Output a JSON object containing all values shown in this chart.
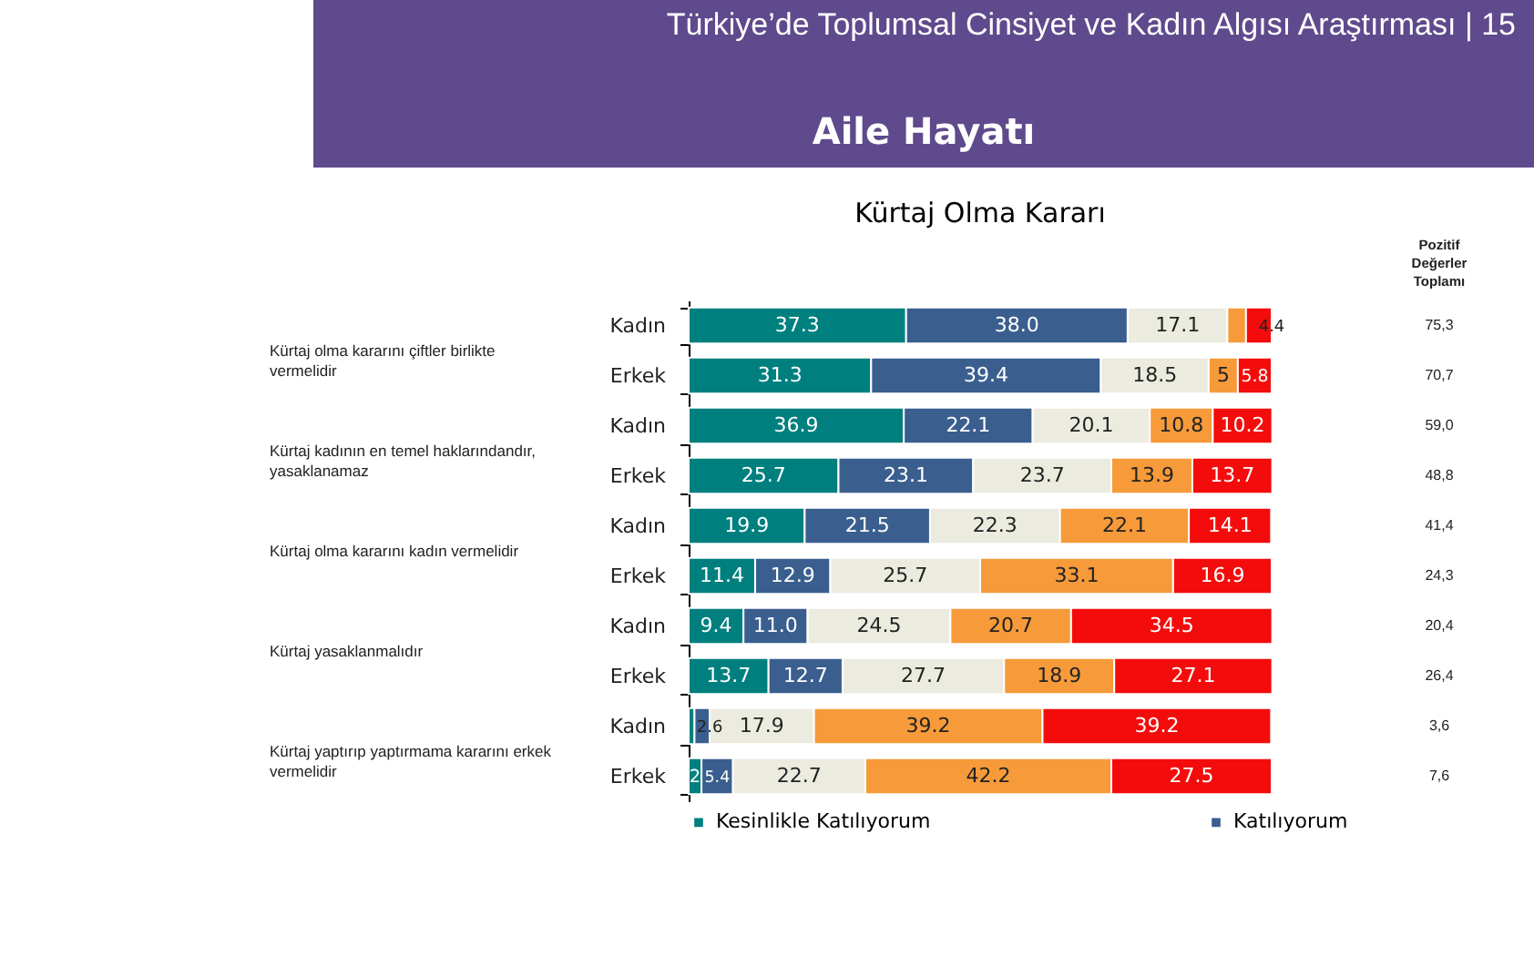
{
  "chart_data": {
    "type": "bar",
    "orientation": "horizontal",
    "stacked": true,
    "title": "Aile Hayatı",
    "subtitle": "Kürtaj Olma Kararı",
    "categories": [
      "Kadın",
      "Erkek",
      "Kadın",
      "Erkek",
      "Kadın",
      "Erkek",
      "Kadın",
      "Erkek",
      "Kadın",
      "Erkek"
    ],
    "xlim": [
      0,
      100
    ],
    "tick_labels": "y",
    "grid": false,
    "legend": "bottom",
    "series": [
      {
        "name": "Kesinlikle Katılıyorum",
        "color": "#007f7f",
        "values": [
          37.3,
          31.3,
          36.9,
          25.7,
          19.9,
          11.4,
          9.4,
          13.7,
          1.0,
          2.2
        ],
        "value_labels": [
          "37.3",
          "31.3",
          "36.9",
          "25.7",
          "19.9",
          "11.4",
          "9.4",
          "13.7",
          null,
          "2"
        ]
      },
      {
        "name": "Katılıyorum",
        "color": "#3a5f8f",
        "values": [
          38.0,
          39.4,
          22.1,
          23.1,
          21.5,
          12.9,
          11.0,
          12.7,
          2.6,
          5.4
        ],
        "value_labels": [
          "38.0",
          "39.4",
          "22.1",
          "23.1",
          "21.5",
          "12.9",
          "11.0",
          "12.7",
          "2.6",
          "5.4"
        ]
      },
      {
        "color": "#ecebe0",
        "values": [
          17.1,
          18.5,
          20.1,
          23.7,
          22.3,
          25.7,
          24.5,
          27.7,
          17.9,
          22.7
        ],
        "value_labels": [
          "17.1",
          "18.5",
          "20.1",
          "23.7",
          "22.3",
          "25.7",
          "24.5",
          "27.7",
          "17.9",
          "22.7"
        ]
      },
      {
        "color": "#f79a3a",
        "values": [
          3.2,
          5.0,
          10.8,
          13.9,
          22.1,
          33.1,
          20.7,
          18.9,
          39.2,
          42.2
        ],
        "value_labels": [
          null,
          "5",
          "10.8",
          "13.9",
          "22.1",
          "33.1",
          "20.7",
          "18.9",
          "39.2",
          "42.2"
        ]
      },
      {
        "color": "#f40c0c",
        "values": [
          4.4,
          5.8,
          10.2,
          13.7,
          14.1,
          16.9,
          34.5,
          27.1,
          39.2,
          27.5
        ],
        "value_labels": [
          "4.4",
          "5.8",
          "10.2",
          "13.7",
          "14.1",
          "16.9",
          "34.5",
          "27.1",
          "39.2",
          "27.5"
        ]
      }
    ],
    "annotations": [
      "Türkiye’de Toplumsal Cinsiyet ve Kadın Algısı Araştırması | 15",
      "Kürtaj olma kararını çiftler birlikte vermelidir",
      "Kürtaj kadının en temel haklarındandır, yasaklanamaz",
      "Kürtaj olma kararını kadın vermelidir",
      "Kürtaj yasaklanmalıdır",
      "Kürtaj yaptırıp yaptırmama kararını erkek vermelidir",
      "Pozitif Değerler Toplamı",
      "75,3",
      "70,7",
      "59,0",
      "48,8",
      "41,4",
      "24,3",
      "20,4",
      "26,4",
      "3,6",
      "7,6"
    ]
  }
}
